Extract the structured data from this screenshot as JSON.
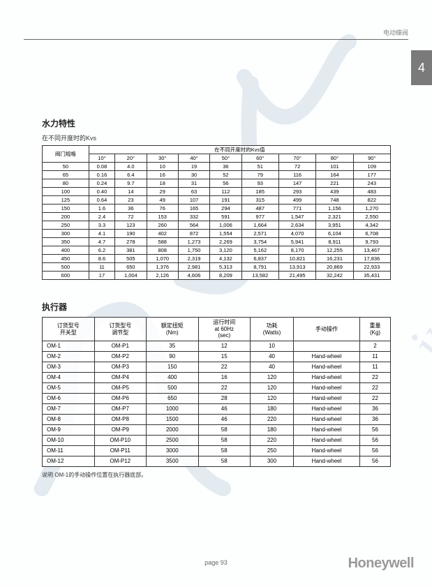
{
  "header": {
    "category": "电动蝶阀",
    "tab_number": "4"
  },
  "watermark": {
    "stroke_color": "#3a6a9a",
    "opacity": 0.13
  },
  "kvs_section": {
    "title": "水力特性",
    "caption": "在不同开度时的Kvs",
    "corner_header": "阀门规格",
    "group_header": "在不同开度时的Kvs值",
    "angle_headers": [
      "10°",
      "20°",
      "30°",
      "40°",
      "50°",
      "60°",
      "70°",
      "80°",
      "90°"
    ],
    "rows": [
      {
        "size": "50",
        "v": [
          "0.08",
          "4.0",
          "10",
          "19",
          "36",
          "51",
          "72",
          "101",
          "109"
        ]
      },
      {
        "size": "65",
        "v": [
          "0.16",
          "6.4",
          "16",
          "30",
          "52",
          "79",
          "116",
          "164",
          "177"
        ]
      },
      {
        "size": "80",
        "v": [
          "0.24",
          "9.7",
          "18",
          "31",
          "56",
          "93",
          "147",
          "221",
          "243"
        ]
      },
      {
        "size": "100",
        "v": [
          "0.40",
          "14",
          "29",
          "63",
          "112",
          "185",
          "293",
          "439",
          "483"
        ]
      },
      {
        "size": "125",
        "v": [
          "0.64",
          "23",
          "49",
          "107",
          "191",
          "315",
          "499",
          "748",
          "822"
        ]
      },
      {
        "size": "150",
        "v": [
          "1.6",
          "36",
          "76",
          "165",
          "294",
          "487",
          "771",
          "1,156",
          "1,270"
        ]
      },
      {
        "size": "200",
        "v": [
          "2.4",
          "72",
          "153",
          "332",
          "591",
          "977",
          "1,547",
          "2,321",
          "2,550"
        ]
      },
      {
        "size": "250",
        "v": [
          "3.3",
          "123",
          "260",
          "564",
          "1,006",
          "1,664",
          "2,634",
          "3,951",
          "4,342"
        ]
      },
      {
        "size": "300",
        "v": [
          "4.1",
          "190",
          "402",
          "872",
          "1,554",
          "2,571",
          "4,070",
          "6,104",
          "6,708"
        ]
      },
      {
        "size": "350",
        "v": [
          "4.7",
          "278",
          "588",
          "1,273",
          "2,269",
          "3,754",
          "5,941",
          "8,911",
          "9,793"
        ]
      },
      {
        "size": "400",
        "v": [
          "6.2",
          "381",
          "808",
          "1,750",
          "3,120",
          "5,162",
          "8,170",
          "12,255",
          "13,467"
        ]
      },
      {
        "size": "450",
        "v": [
          "8.6",
          "505",
          "1,070",
          "2,319",
          "4,132",
          "6,837",
          "10,821",
          "16,231",
          "17,836"
        ]
      },
      {
        "size": "500",
        "v": [
          "11",
          "650",
          "1,376",
          "2,981",
          "5,313",
          "8,791",
          "13,913",
          "20,869",
          "22,933"
        ]
      },
      {
        "size": "600",
        "v": [
          "17",
          "1,004",
          "2,126",
          "4,606",
          "8,209",
          "13,582",
          "21,495",
          "32,242",
          "35,431"
        ]
      }
    ]
  },
  "actuator_section": {
    "title": "执行器",
    "headers": {
      "order_switch": "订货型号\n开关型",
      "order_modulating": "订货型号\n调节型",
      "torque": "额定扭矩\n(Nm)",
      "runtime": "运行时间\nat 60Hz\n(sec)",
      "power": "功耗\n(Watts)",
      "manual": "手动操作",
      "weight": "重量\n(Kg)"
    },
    "rows": [
      {
        "c": [
          "OM-1",
          "OM-P1",
          "35",
          "12",
          "10",
          "",
          "2"
        ]
      },
      {
        "c": [
          "OM-2",
          "OM-P2",
          "90",
          "15",
          "40",
          "Hand-wheel",
          "11"
        ]
      },
      {
        "c": [
          "OM-3",
          "OM-P3",
          "150",
          "22",
          "40",
          "Hand-wheel",
          "11"
        ]
      },
      {
        "c": [
          "OM-4",
          "OM-P4",
          "400",
          "16",
          "120",
          "Hand-wheel",
          "22"
        ]
      },
      {
        "c": [
          "OM-5",
          "OM-P5",
          "500",
          "22",
          "120",
          "Hand-wheel",
          "22"
        ]
      },
      {
        "c": [
          "OM-6",
          "OM-P6",
          "650",
          "28",
          "120",
          "Hand-wheel",
          "22"
        ]
      },
      {
        "c": [
          "OM-7",
          "OM-P7",
          "1000",
          "46",
          "180",
          "Hand-wheel",
          "36"
        ]
      },
      {
        "c": [
          "OM-8",
          "OM-P8",
          "1500",
          "46",
          "220",
          "Hand-wheel",
          "36"
        ]
      },
      {
        "c": [
          "OM-9",
          "OM-P9",
          "2000",
          "58",
          "180",
          "Hand-wheel",
          "56"
        ]
      },
      {
        "c": [
          "OM-10",
          "OM-P10",
          "2500",
          "58",
          "220",
          "Hand-wheel",
          "56"
        ]
      },
      {
        "c": [
          "OM-11",
          "OM-P11",
          "3000",
          "58",
          "250",
          "Hand-wheel",
          "56"
        ]
      },
      {
        "c": [
          "OM-12",
          "OM-P12",
          "3500",
          "58",
          "300",
          "Hand-wheel",
          "56"
        ]
      }
    ],
    "footnote": "说明    OM-1的手动操作位置在执行器底部。"
  },
  "footer": {
    "page_label": "page  93",
    "brand": "Honeywell"
  },
  "styling": {
    "page_bg": "#fdfefe",
    "border_color": "#333333",
    "text_color": "#222222",
    "tab_bg": "#7a7a7a",
    "brand_color": "#999999",
    "title_fontsize_pt": 12,
    "table_fontsize_pt": 7.5
  }
}
